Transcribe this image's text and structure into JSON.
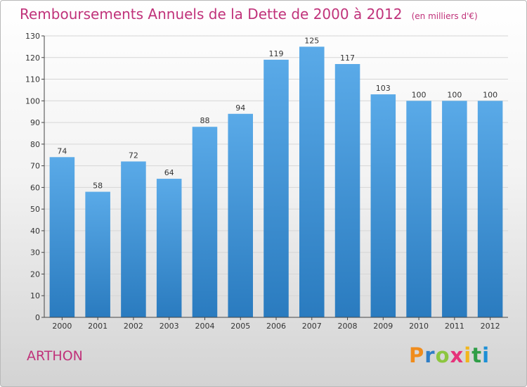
{
  "title": "Remboursements Annuels de la Dette de 2000 à 2012",
  "unit": "(en milliers d'€)",
  "place": "ARTHON",
  "brand": {
    "letters": [
      "P",
      "r",
      "o",
      "x",
      "i",
      "t",
      "i"
    ],
    "colors": [
      "#f08c1c",
      "#2f7ec6",
      "#8cc63f",
      "#e6337a",
      "#f2b61c",
      "#2f9e47",
      "#1c8fd6"
    ]
  },
  "colors": {
    "title": "#c0327a",
    "bar_top": "#5aaae8",
    "bar_bottom": "#2a7bbf",
    "grid": "#d6d6d6",
    "axis": "#444444"
  },
  "chart_data": {
    "type": "bar",
    "categories": [
      "2000",
      "2001",
      "2002",
      "2003",
      "2004",
      "2005",
      "2006",
      "2007",
      "2008",
      "2009",
      "2010",
      "2011",
      "2012"
    ],
    "values": [
      74,
      58,
      72,
      64,
      88,
      94,
      119,
      125,
      117,
      103,
      100,
      100,
      100
    ],
    "title": "Remboursements Annuels de la Dette de 2000 à 2012",
    "xlabel": "",
    "ylabel": "",
    "ylim": [
      0,
      130
    ],
    "yticks": [
      0,
      10,
      20,
      30,
      40,
      50,
      60,
      70,
      80,
      90,
      100,
      110,
      120,
      130
    ],
    "grid": true,
    "legend": "none"
  }
}
